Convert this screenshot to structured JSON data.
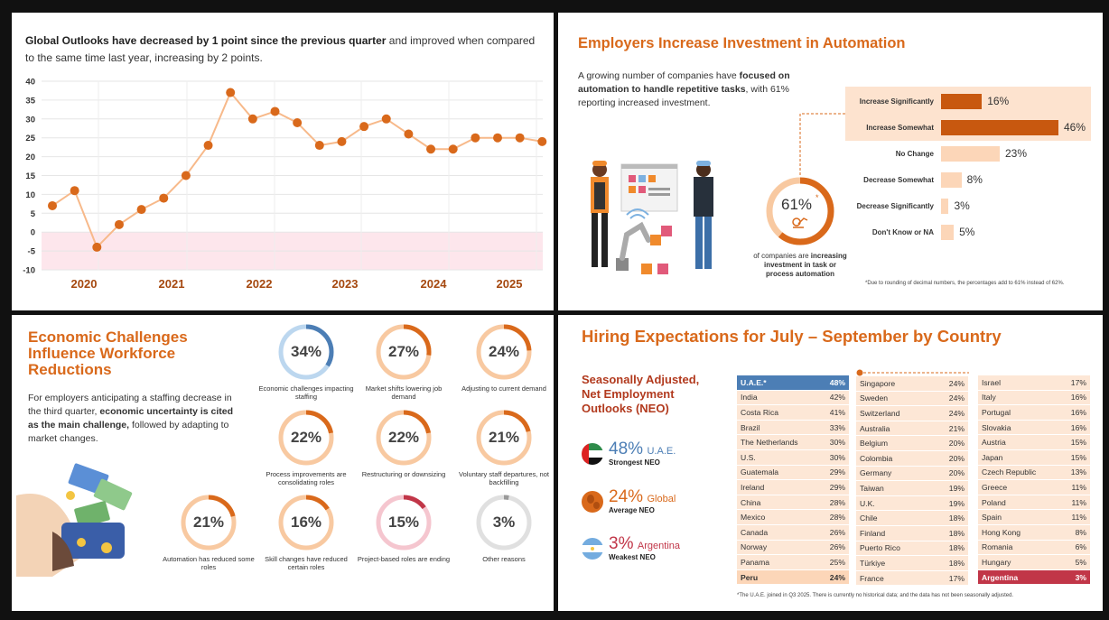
{
  "panel1": {
    "headline_bold": "Global Outlooks have decreased by 1 point since the previous quarter",
    "headline_rest": " and improved when compared to the same time last year, increasing by 2 points."
  },
  "chart_data": [
    {
      "type": "line",
      "title": "Global Outlooks have decreased by 1 point since the previous quarter and improved when compared to the same time last year, increasing by 2 points.",
      "xlabel": "",
      "ylabel": "",
      "ylim": [
        -10,
        40
      ],
      "yticks": [
        "40",
        "35",
        "30",
        "25",
        "20",
        "15",
        "10",
        "5",
        "0",
        "-5",
        "-10"
      ],
      "xtick_labels": [
        "2020",
        "2021",
        "2022",
        "2023",
        "2024",
        "2025"
      ],
      "series": [
        {
          "name": "Global NEO",
          "values": [
            7,
            11,
            -4,
            2,
            6,
            9,
            15,
            23,
            37,
            30,
            32,
            29,
            23,
            24,
            28,
            30,
            26,
            22,
            22,
            25,
            25,
            25,
            24
          ]
        }
      ],
      "color": "#d9691b"
    },
    {
      "type": "bar",
      "title": "Employers Increase Investment in Automation",
      "categories": [
        "Increase Significantly",
        "Increase Somewhat",
        "No Change",
        "Decrease Somewhat",
        "Decrease Significantly",
        "Don't Know or NA"
      ],
      "values": [
        16,
        46,
        23,
        8,
        3,
        5
      ],
      "value_labels": [
        "16%",
        "46%",
        "23%",
        "8%",
        "3%",
        "5%"
      ]
    }
  ],
  "panel2": {
    "title": "Employers Increase Investment in Automation",
    "desc_pre": "A growing number of companies have ",
    "desc_bold": "focused on automation to handle repetitive tasks",
    "desc_post": ", with 61% reporting increased investment.",
    "ring_value": "61%",
    "ring_mark": "*",
    "ring_fraction": 0.61,
    "ring_cap_pre": "of companies are ",
    "ring_cap_bold": "increasing investment in task or process automation",
    "note": "*Due to rounding of decimal numbers, the percentages add to 61% instead of 62%."
  },
  "panel3": {
    "title": "Economic Challenges Influence Workforce Reductions",
    "desc_pre": "For employers anticipating a staffing decrease in the third quarter, ",
    "desc_bold": "economic uncertainty is cited as the main challenge,",
    "desc_post": " followed by adapting to market changes.",
    "stats": [
      {
        "pct": "34%",
        "value": 34,
        "caption": "Economic challenges impacting staffing",
        "color": "#4c7eb5",
        "track": "#bcd7ef"
      },
      {
        "pct": "27%",
        "value": 27,
        "caption": "Market shifts lowering job demand",
        "color": "#d9691b",
        "track": "#f8c9a1"
      },
      {
        "pct": "24%",
        "value": 24,
        "caption": "Adjusting to current demand",
        "color": "#d9691b",
        "track": "#f8c9a1"
      },
      {
        "pct": "22%",
        "value": 22,
        "caption": "Process improvements are consolidating roles",
        "color": "#d9691b",
        "track": "#f8c9a1"
      },
      {
        "pct": "22%",
        "value": 22,
        "caption": "Restructuring or downsizing",
        "color": "#d9691b",
        "track": "#f8c9a1"
      },
      {
        "pct": "21%",
        "value": 21,
        "caption": "Voluntary staff departures, not backfilling",
        "color": "#d9691b",
        "track": "#f8c9a1"
      },
      {
        "pct": "21%",
        "value": 21,
        "caption": "Automation has reduced some roles",
        "color": "#d9691b",
        "track": "#f8c9a1"
      },
      {
        "pct": "16%",
        "value": 16,
        "caption": "Skill changes have reduced certain roles",
        "color": "#d9691b",
        "track": "#f8c9a1"
      },
      {
        "pct": "15%",
        "value": 15,
        "caption": "Project-based roles are ending",
        "color": "#c13648",
        "track": "#f5c6cf"
      },
      {
        "pct": "3%",
        "value": 3,
        "caption": "Other reasons",
        "color": "#9a9a9a",
        "track": "#e0e0e0"
      }
    ]
  },
  "panel4": {
    "title": "Hiring Expectations for July – September by Country",
    "subtitle": "Seasonally Adjusted, Net Employment Outlooks (NEO)",
    "neo": [
      {
        "value": "48%",
        "name": "U.A.E.",
        "label": "Strongest NEO",
        "color": "#4c7eb5"
      },
      {
        "value": "24%",
        "name": "Global",
        "label": "Average NEO",
        "color": "#d9691b"
      },
      {
        "value": "3%",
        "name": "Argentina",
        "label": "Weakest NEO",
        "color": "#c13648"
      }
    ],
    "col1": [
      [
        "U.A.E.*",
        "48%"
      ],
      [
        "India",
        "42%"
      ],
      [
        "Costa Rica",
        "41%"
      ],
      [
        "Brazil",
        "33%"
      ],
      [
        "The Netherlands",
        "30%"
      ],
      [
        "U.S.",
        "30%"
      ],
      [
        "Guatemala",
        "29%"
      ],
      [
        "Ireland",
        "29%"
      ],
      [
        "China",
        "28%"
      ],
      [
        "Mexico",
        "28%"
      ],
      [
        "Canada",
        "26%"
      ],
      [
        "Norway",
        "26%"
      ],
      [
        "Panama",
        "25%"
      ],
      [
        "Peru",
        "24%"
      ]
    ],
    "col2": [
      [
        "Singapore",
        "24%"
      ],
      [
        "Sweden",
        "24%"
      ],
      [
        "Switzerland",
        "24%"
      ],
      [
        "Australia",
        "21%"
      ],
      [
        "Belgium",
        "20%"
      ],
      [
        "Colombia",
        "20%"
      ],
      [
        "Germany",
        "20%"
      ],
      [
        "Taiwan",
        "19%"
      ],
      [
        "U.K.",
        "19%"
      ],
      [
        "Chile",
        "18%"
      ],
      [
        "Finland",
        "18%"
      ],
      [
        "Puerto Rico",
        "18%"
      ],
      [
        "Türkiye",
        "18%"
      ],
      [
        "France",
        "17%"
      ]
    ],
    "col3": [
      [
        "Israel",
        "17%"
      ],
      [
        "Italy",
        "16%"
      ],
      [
        "Portugal",
        "16%"
      ],
      [
        "Slovakia",
        "16%"
      ],
      [
        "Austria",
        "15%"
      ],
      [
        "Japan",
        "15%"
      ],
      [
        "Czech Republic",
        "13%"
      ],
      [
        "Greece",
        "11%"
      ],
      [
        "Poland",
        "11%"
      ],
      [
        "Spain",
        "11%"
      ],
      [
        "Hong Kong",
        "8%"
      ],
      [
        "Romania",
        "6%"
      ],
      [
        "Hungary",
        "5%"
      ],
      [
        "Argentina",
        "3%"
      ]
    ],
    "note": "*The U.A.E. joined in Q3 2025. There is currently no historical data; and the data has not been seasonally adjusted."
  }
}
